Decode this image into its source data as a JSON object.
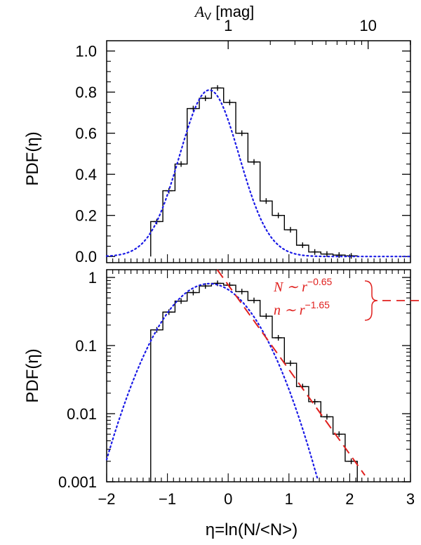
{
  "chart_data": [
    {
      "panel": "top",
      "type": "step-histogram",
      "ylabel": "PDF(η)",
      "y_scale": "linear",
      "xlim": [
        -2,
        3
      ],
      "ylim": [
        -0.03,
        1.05
      ],
      "yticks": [
        0.0,
        0.2,
        0.4,
        0.6,
        0.8,
        1.0
      ],
      "ytick_labels": [
        "0.0",
        "0.2",
        "0.4",
        "0.6",
        "0.8",
        "1.0"
      ],
      "top_axis": {
        "label_prefix": "A",
        "label_sub": "V",
        "label_suffix": " [mag]",
        "ticks": [
          "1",
          "10"
        ],
        "tick_x": [
          0.0,
          2.303
        ]
      },
      "histogram": {
        "bin_edges": [
          -1.275,
          -1.075,
          -0.875,
          -0.675,
          -0.475,
          -0.275,
          -0.075,
          0.125,
          0.325,
          0.525,
          0.725,
          0.925,
          1.125,
          1.325,
          1.525,
          1.725,
          1.925,
          2.125
        ],
        "values": [
          0.17,
          0.32,
          0.45,
          0.72,
          0.77,
          0.82,
          0.75,
          0.6,
          0.46,
          0.27,
          0.2,
          0.13,
          0.055,
          0.022,
          0.012,
          0.007,
          0.003
        ]
      },
      "gaussian_fit": {
        "mu": -0.31,
        "sigma": 0.49,
        "amplitude": 0.81,
        "color": "#1a1ae6"
      }
    },
    {
      "panel": "bottom",
      "type": "step-histogram",
      "ylabel": "PDF(η)",
      "xlabel": "η=ln(N/<N>)",
      "y_scale": "log",
      "xlim": [
        -2,
        3
      ],
      "ylim": [
        0.001,
        1.3
      ],
      "yticks": [
        0.001,
        0.01,
        0.1,
        1
      ],
      "ytick_labels": [
        "0.001",
        "0.01",
        "0.1",
        "1"
      ],
      "xticks": [
        -2,
        -1,
        0,
        1,
        2,
        3
      ],
      "xtick_labels": [
        "−2",
        "−1",
        "0",
        "1",
        "2",
        "3"
      ],
      "histogram": {
        "bin_edges": [
          -1.275,
          -1.075,
          -0.875,
          -0.675,
          -0.475,
          -0.275,
          -0.075,
          0.125,
          0.325,
          0.525,
          0.725,
          0.925,
          1.125,
          1.325,
          1.525,
          1.725,
          1.925,
          2.125
        ],
        "values": [
          0.17,
          0.31,
          0.45,
          0.6,
          0.75,
          0.82,
          0.77,
          0.62,
          0.46,
          0.27,
          0.13,
          0.055,
          0.025,
          0.015,
          0.009,
          0.005,
          0.002
        ]
      },
      "gaussian_fit": {
        "mu": -0.31,
        "sigma": 0.49,
        "amplitude": 0.81,
        "color": "#1a1ae6"
      },
      "power_law_fit": {
        "slope": -3.1,
        "x_range": [
          -0.18,
          2.25
        ],
        "anchor_x": 1.0,
        "anchor_y": 0.06,
        "color": "#e0201e"
      },
      "annotation": {
        "line1_base": "N ∼ r",
        "line1_exp": "−0.65",
        "line2_base": "n ∼ r",
        "line2_exp": "−1.65"
      }
    }
  ]
}
